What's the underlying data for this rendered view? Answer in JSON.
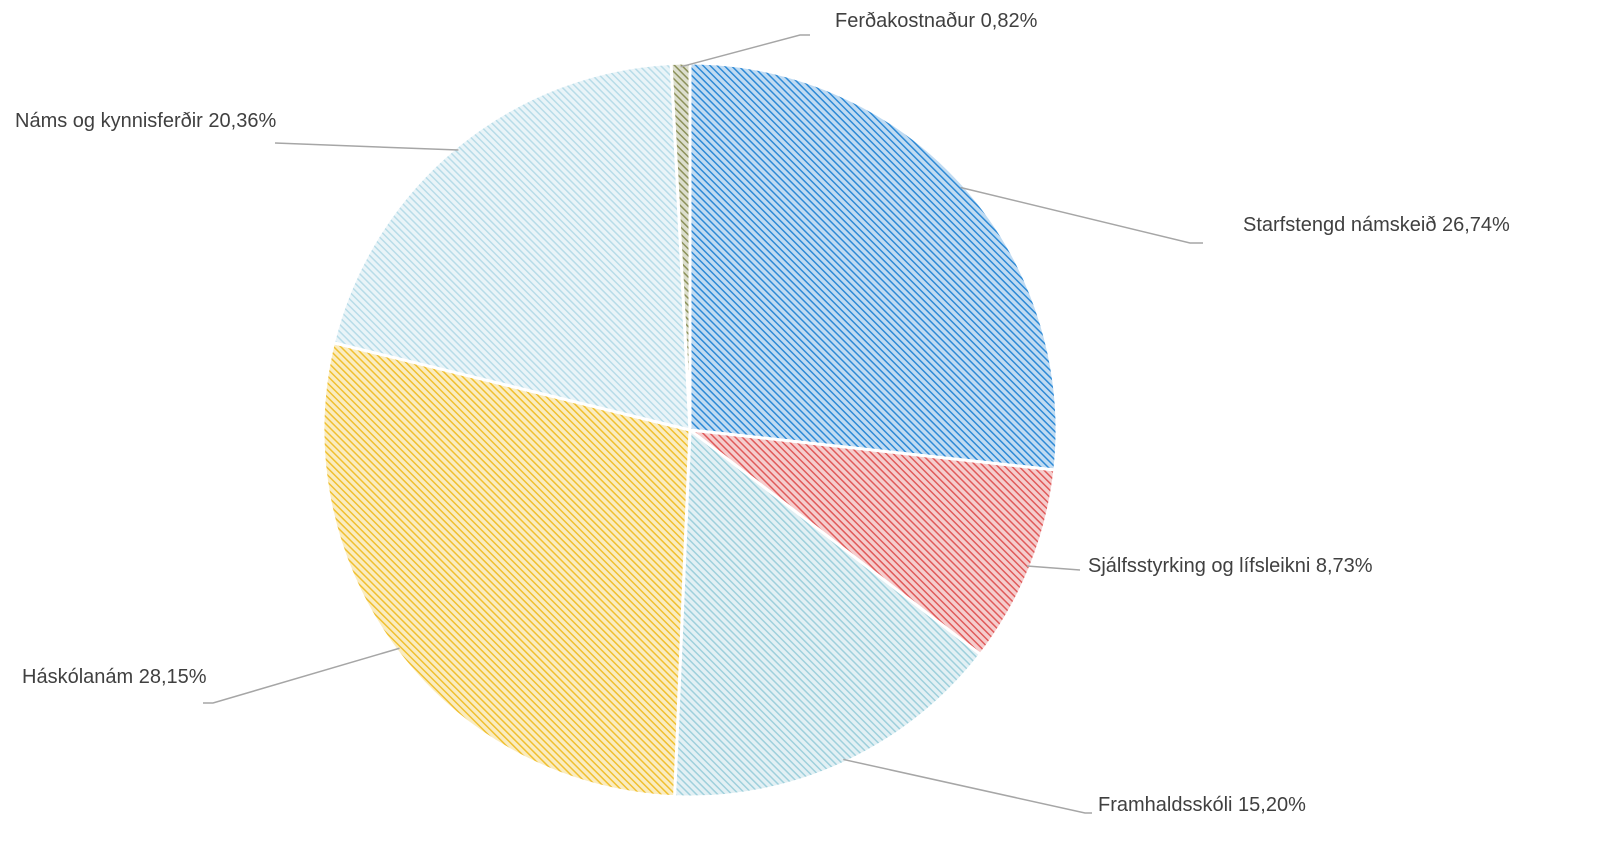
{
  "chart_data": {
    "type": "pie",
    "categories": [
      "Starfstengd námskeið",
      "Sjálfsstyrking og lífsleikni",
      "Framhaldsskóli",
      "Háskólanám",
      "Náms og kynnisferðir",
      "Ferðakostnaður"
    ],
    "values": [
      26.74,
      8.73,
      15.2,
      28.15,
      20.36,
      0.82
    ],
    "value_labels": [
      "26,74%",
      "8,73%",
      "15,20%",
      "28,15%",
      "20,36%",
      "0,82%"
    ],
    "colors": [
      "#2e8ad6",
      "#e05a5a",
      "#9fd0dc",
      "#f0c030",
      "#b8dce8",
      "#8c915a"
    ]
  }
}
